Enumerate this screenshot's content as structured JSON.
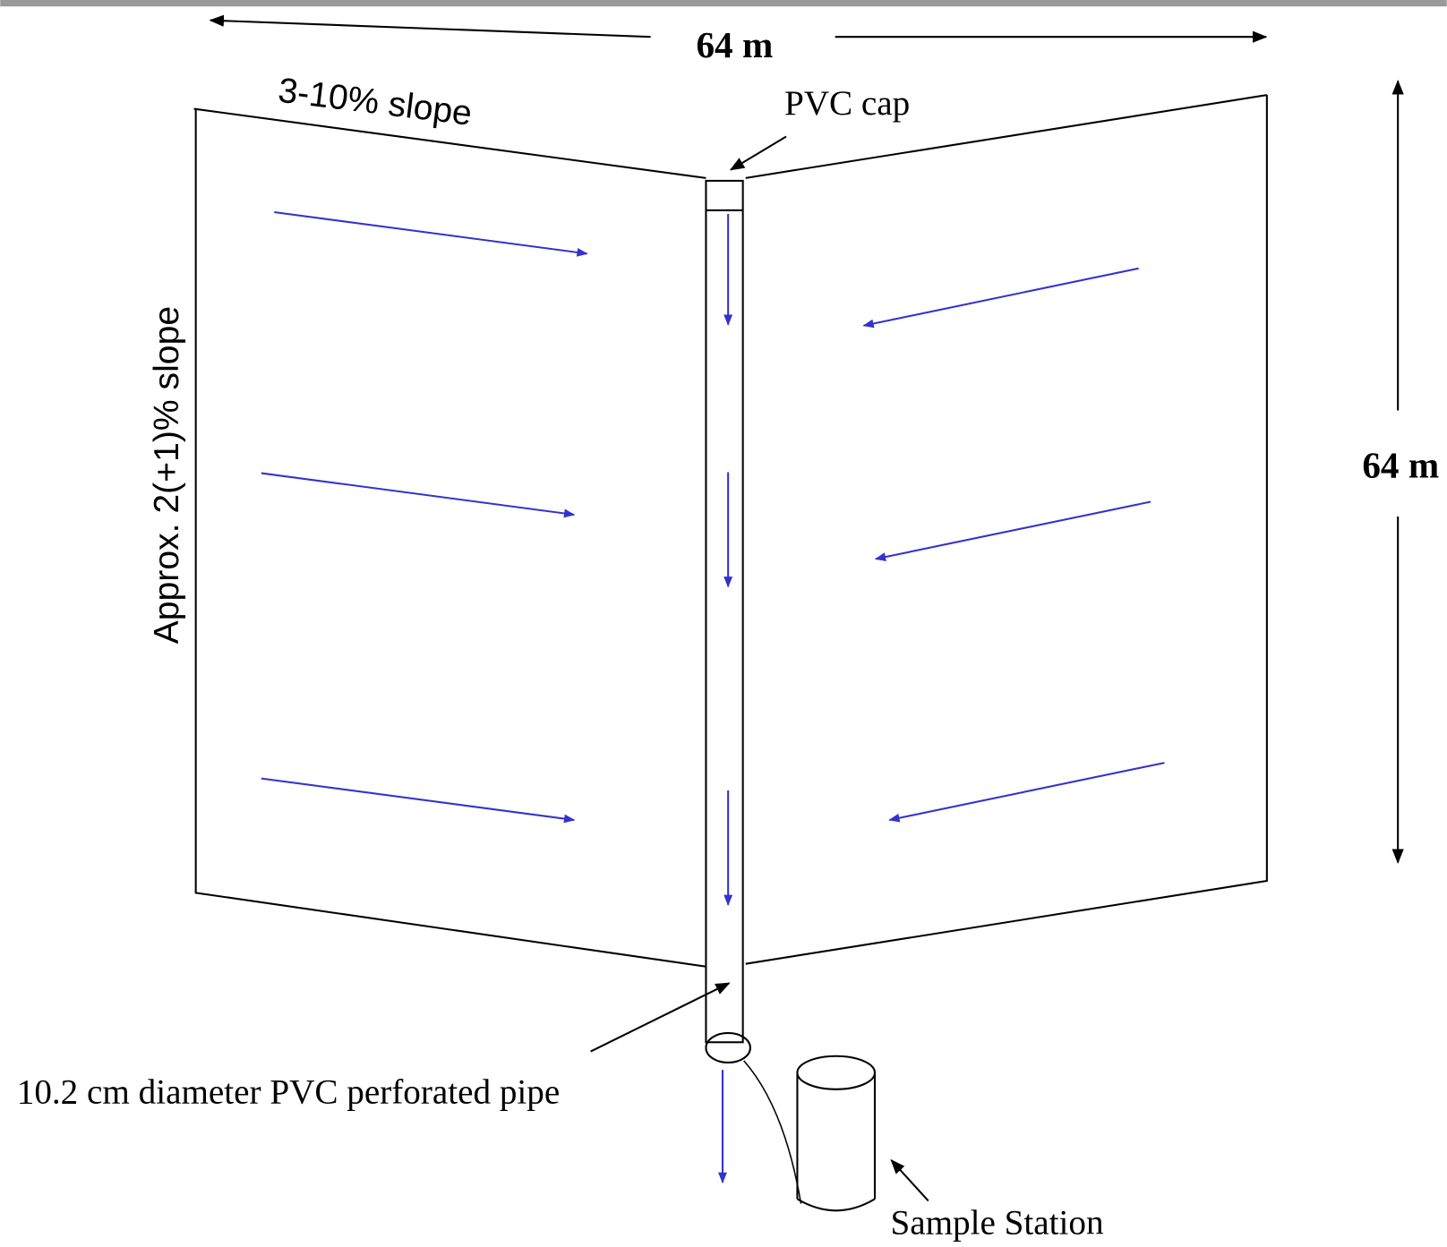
{
  "labels": {
    "top_width": "64 m",
    "side_length": "64 m",
    "cross_slope": "3-10% slope",
    "down_slope": "Approx. 2(+1)% slope",
    "cap": "PVC cap",
    "pipe": "10.2 cm diameter PVC perforated pipe",
    "station": "Sample Station"
  }
}
